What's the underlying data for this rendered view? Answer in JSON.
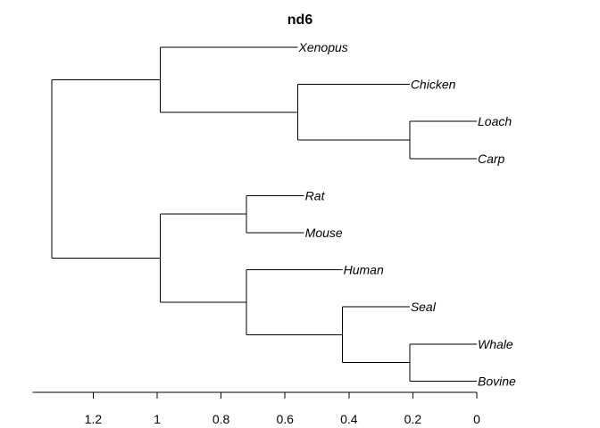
{
  "title": "nd6",
  "axis": {
    "ticks": [
      1.2,
      1,
      0.8,
      0.6,
      0.4,
      0.2,
      0
    ],
    "tick_labels": [
      "1.2",
      "1",
      "0.8",
      "0.6",
      "0.4",
      "0.2",
      "0"
    ],
    "range": [
      1.39,
      0
    ]
  },
  "tree": {
    "h": 1.33,
    "children": [
      {
        "h": 0.99,
        "children": [
          {
            "name": "Xenopus",
            "h": 0.56
          },
          {
            "h": 0.56,
            "children": [
              {
                "name": "Chicken",
                "h": 0.21
              },
              {
                "h": 0.21,
                "children": [
                  {
                    "name": "Loach",
                    "h": 0
                  },
                  {
                    "name": "Carp",
                    "h": 0
                  }
                ]
              }
            ]
          }
        ]
      },
      {
        "h": 0.99,
        "children": [
          {
            "h": 0.72,
            "children": [
              {
                "name": "Rat",
                "h": 0.54
              },
              {
                "name": "Mouse",
                "h": 0.54
              }
            ]
          },
          {
            "h": 0.72,
            "children": [
              {
                "name": "Human",
                "h": 0.42
              },
              {
                "h": 0.42,
                "children": [
                  {
                    "name": "Seal",
                    "h": 0.21
                  },
                  {
                    "h": 0.21,
                    "children": [
                      {
                        "name": "Whale",
                        "h": 0
                      },
                      {
                        "name": "Bovine",
                        "h": 0
                      }
                    ]
                  }
                ]
              }
            ]
          }
        ]
      }
    ]
  }
}
